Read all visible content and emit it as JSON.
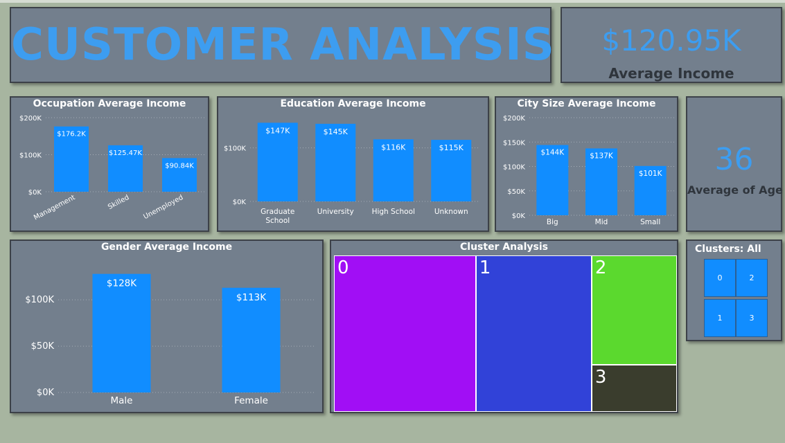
{
  "dashboard": {
    "title": "CUSTOMER ANALYSIS",
    "kpi_income": {
      "value": "$120.95K",
      "label": "Average Income"
    },
    "kpi_age": {
      "value": "36",
      "label": "Average of Age"
    },
    "slicer": {
      "title": "Clusters: All",
      "options": [
        "0",
        "2",
        "1",
        "3"
      ]
    },
    "colors": {
      "bar": "#118dff",
      "panel": "#737f8d",
      "accent": "#3d9df0",
      "background": "#a7b5a0"
    }
  },
  "chart_data": [
    {
      "id": "occupation",
      "type": "bar",
      "title": "Occupation Average Income",
      "categories": [
        "Management",
        "Skilled",
        "Unemployed"
      ],
      "values": [
        176.2,
        125.47,
        90.84
      ],
      "labels": [
        "$176.2K",
        "$125.47K",
        "$90.84K"
      ],
      "yticks": [
        0,
        100,
        200
      ],
      "ytick_labels": [
        "$0K",
        "$100K",
        "$200K"
      ],
      "ylim": [
        0,
        200
      ],
      "xlabel": "",
      "ylabel": ""
    },
    {
      "id": "education",
      "type": "bar",
      "title": "Education Average Income",
      "categories": [
        "Graduate School",
        "University",
        "High School",
        "Unknown"
      ],
      "category_lines": [
        [
          "Graduate",
          "School"
        ],
        [
          "University"
        ],
        [
          "High School"
        ],
        [
          "Unknown"
        ]
      ],
      "values": [
        147,
        145,
        116,
        115
      ],
      "labels": [
        "$147K",
        "$145K",
        "$116K",
        "$115K"
      ],
      "yticks": [
        0,
        100
      ],
      "ytick_labels": [
        "$0K",
        "$100K"
      ],
      "ylim": [
        0,
        150
      ],
      "xlabel": "",
      "ylabel": ""
    },
    {
      "id": "citysize",
      "type": "bar",
      "title": "City Size Average Income",
      "categories": [
        "Big",
        "Mid",
        "Small"
      ],
      "values": [
        144,
        137,
        101
      ],
      "labels": [
        "$144K",
        "$137K",
        "$101K"
      ],
      "yticks": [
        0,
        50,
        100,
        150,
        200
      ],
      "ytick_labels": [
        "$0K",
        "$50K",
        "$100K",
        "$150K",
        "$200K"
      ],
      "ylim": [
        0,
        200
      ],
      "xlabel": "",
      "ylabel": ""
    },
    {
      "id": "gender",
      "type": "bar",
      "title": "Gender Average Income",
      "categories": [
        "Male",
        "Female"
      ],
      "values": [
        128,
        113
      ],
      "labels": [
        "$128K",
        "$113K"
      ],
      "yticks": [
        0,
        50,
        100
      ],
      "ytick_labels": [
        "$0K",
        "$50K",
        "$100K"
      ],
      "ylim": [
        0,
        130
      ],
      "xlabel": "",
      "ylabel": ""
    },
    {
      "id": "cluster",
      "type": "treemap",
      "title": "Cluster Analysis",
      "categories": [
        "0",
        "1",
        "2",
        "3"
      ],
      "values": [
        0.4488,
        0.3659,
        0.1884,
        0.0812
      ],
      "colors": [
        "#a10ef5",
        "#3142d8",
        "#5bd92e",
        "#3a3d2d"
      ]
    }
  ]
}
